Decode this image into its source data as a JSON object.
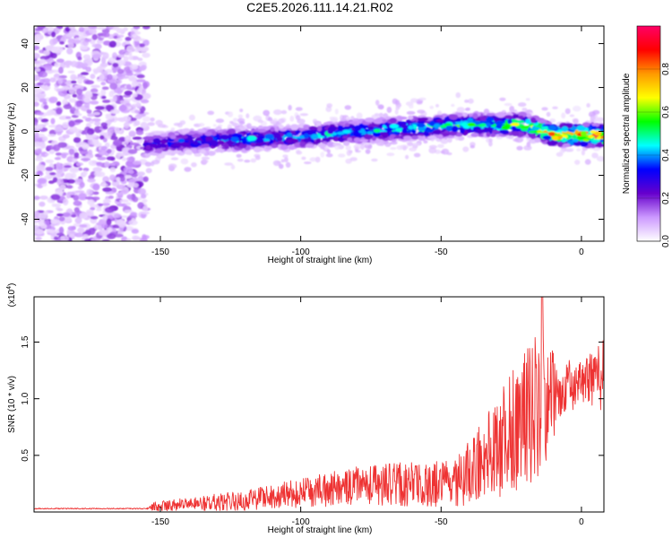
{
  "title": "C2E5.2026.111.14.21.R02",
  "chart_data": [
    {
      "type": "heatmap",
      "xlabel": "Height of straight line (km)",
      "ylabel": "Frequency (Hz)",
      "xlim": [
        -195,
        8
      ],
      "ylim": [
        -50,
        48
      ],
      "x_ticks": [
        -150,
        -100,
        -50,
        0
      ],
      "y_ticks": [
        40,
        20,
        0,
        -20,
        -40
      ],
      "x_tick_labels": [
        "-150",
        "-100",
        "-50",
        "0"
      ],
      "y_tick_labels": [
        "40",
        "20",
        "0",
        "-20",
        "-40"
      ],
      "colorbar": {
        "label": "Normalized spectral amplitude",
        "range": [
          0.0,
          1.0
        ],
        "ticks": [
          0.0,
          0.2,
          0.4,
          0.6,
          0.8
        ],
        "tick_labels": [
          "0.0",
          "0.2",
          "0.4",
          "0.6",
          "0.8"
        ],
        "colors": [
          "#ffffff",
          "#cc99ff",
          "#6600cc",
          "#0000ff",
          "#00ffff",
          "#00ff00",
          "#ffff00",
          "#ff9900",
          "#ff0000",
          "#ff0066"
        ]
      },
      "noise_region_x": [
        -195,
        -155
      ],
      "signal_band": [
        {
          "x": -155,
          "f": -6.0,
          "amp": 0.3
        },
        {
          "x": -140,
          "f": -4.5,
          "amp": 0.4
        },
        {
          "x": -120,
          "f": -3.5,
          "amp": 0.45
        },
        {
          "x": -100,
          "f": -2.5,
          "amp": 0.45
        },
        {
          "x": -80,
          "f": 0.0,
          "amp": 0.5
        },
        {
          "x": -60,
          "f": 1.5,
          "amp": 0.55
        },
        {
          "x": -40,
          "f": 3.0,
          "amp": 0.6
        },
        {
          "x": -20,
          "f": 3.0,
          "amp": 0.65
        },
        {
          "x": -10,
          "f": -1.5,
          "amp": 0.9
        },
        {
          "x": 8,
          "f": -2.0,
          "amp": 0.95
        }
      ]
    },
    {
      "type": "line",
      "xlabel": "Height of straight line (km)",
      "ylabel": "SNR (10 * v/v)",
      "y_multiplier_label": "(x10",
      "y_multiplier_exp": "4",
      "y_multiplier_close": ")",
      "xlim": [
        -195,
        8
      ],
      "ylim": [
        0,
        1.9
      ],
      "x_ticks": [
        -150,
        -100,
        -50,
        0
      ],
      "y_ticks": [
        0.5,
        1.0,
        1.5
      ],
      "x_tick_labels": [
        "-150",
        "-100",
        "-50",
        "0"
      ],
      "y_tick_labels": [
        "0.5",
        "1.0",
        "1.5"
      ],
      "color": "#ee3333",
      "envelope": [
        {
          "x": -195,
          "base": 0.03,
          "amp": 0.005
        },
        {
          "x": -155,
          "base": 0.03,
          "amp": 0.005
        },
        {
          "x": -152,
          "base": 0.05,
          "amp": 0.04
        },
        {
          "x": -140,
          "base": 0.07,
          "amp": 0.06
        },
        {
          "x": -120,
          "base": 0.1,
          "amp": 0.09
        },
        {
          "x": -100,
          "base": 0.17,
          "amp": 0.13
        },
        {
          "x": -80,
          "base": 0.23,
          "amp": 0.17
        },
        {
          "x": -60,
          "base": 0.25,
          "amp": 0.2
        },
        {
          "x": -45,
          "base": 0.24,
          "amp": 0.22
        },
        {
          "x": -35,
          "base": 0.45,
          "amp": 0.35
        },
        {
          "x": -25,
          "base": 0.7,
          "amp": 0.55
        },
        {
          "x": -15,
          "base": 0.95,
          "amp": 0.65
        },
        {
          "x": -8,
          "base": 1.05,
          "amp": 0.3
        },
        {
          "x": 0,
          "base": 1.15,
          "amp": 0.18
        },
        {
          "x": 8,
          "base": 1.2,
          "amp": 0.35
        }
      ],
      "peak": {
        "x": -14,
        "y": 1.9
      }
    }
  ]
}
